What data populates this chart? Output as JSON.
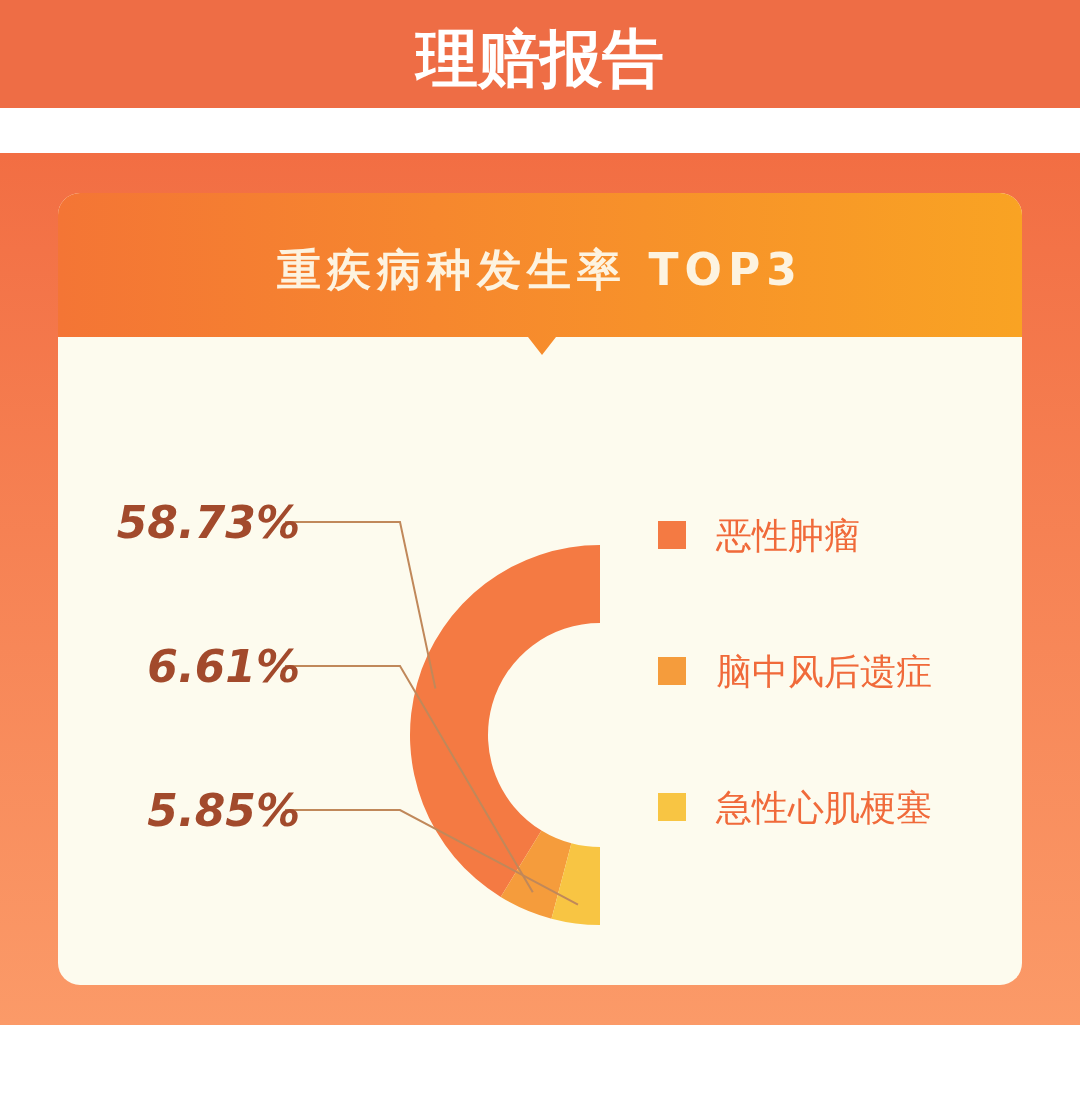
{
  "chart_data": {
    "type": "donut",
    "title": "理赔报告",
    "subtitle": "重疾病种发生率 TOP3",
    "categories": [
      "恶性肿瘤",
      "脑中风后遗症",
      "急性心肌梗塞"
    ],
    "values": [
      58.73,
      6.61,
      5.85
    ],
    "colors": [
      "#f47a43",
      "#f59c3c",
      "#f8c543"
    ],
    "value_labels": [
      "58.73%",
      "6.61%",
      "5.85%"
    ],
    "legend": "right"
  }
}
